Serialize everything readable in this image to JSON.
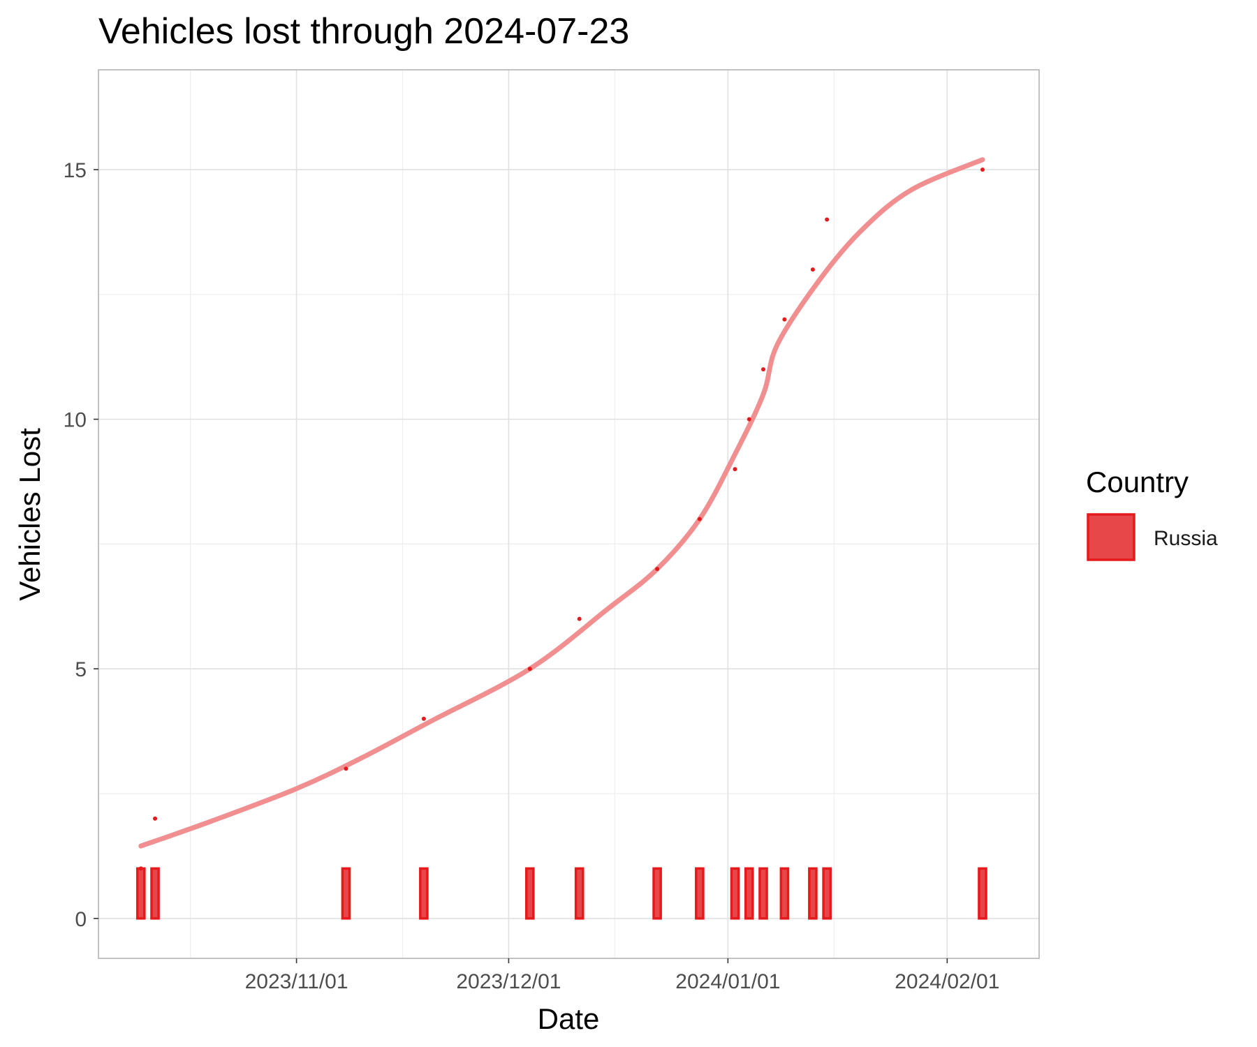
{
  "chart_data": {
    "type": "line",
    "title": "Vehicles lost through 2024-07-23",
    "xlabel": "Date",
    "ylabel": "Vehicles Lost",
    "xlim": [
      "2023-10-04",
      "2024-02-14"
    ],
    "ylim": [
      -0.8,
      17
    ],
    "x_ticks": [
      "2023-11-01",
      "2023-12-01",
      "2024-01-01",
      "2024-02-01"
    ],
    "x_tick_labels": [
      "2023/11/01",
      "2023/12/01",
      "2024/01/01",
      "2024/02/01"
    ],
    "y_ticks": [
      0,
      5,
      10,
      15
    ],
    "y_tick_labels": [
      "0",
      "5",
      "10",
      "15"
    ],
    "grid": true,
    "legend": {
      "title": "Country",
      "position": "right",
      "entries": [
        "Russia"
      ]
    },
    "colors": {
      "series": "#e41a1c",
      "fill": "#e8474a",
      "smooth": "#f08e90"
    },
    "series": [
      {
        "name": "Russia",
        "points": [
          {
            "date": "2023-10-10",
            "value": 1
          },
          {
            "date": "2023-10-12",
            "value": 2
          },
          {
            "date": "2023-11-08",
            "value": 3
          },
          {
            "date": "2023-11-19",
            "value": 4
          },
          {
            "date": "2023-12-04",
            "value": 5
          },
          {
            "date": "2023-12-11",
            "value": 6
          },
          {
            "date": "2023-12-22",
            "value": 7
          },
          {
            "date": "2023-12-28",
            "value": 8
          },
          {
            "date": "2024-01-02",
            "value": 9
          },
          {
            "date": "2024-01-04",
            "value": 10
          },
          {
            "date": "2024-01-06",
            "value": 11
          },
          {
            "date": "2024-01-09",
            "value": 12
          },
          {
            "date": "2024-01-13",
            "value": 13
          },
          {
            "date": "2024-01-15",
            "value": 14
          },
          {
            "date": "2024-02-06",
            "value": 15
          }
        ],
        "daily_losses": [
          {
            "date": "2023-10-10",
            "value": 1
          },
          {
            "date": "2023-10-12",
            "value": 1
          },
          {
            "date": "2023-11-08",
            "value": 1
          },
          {
            "date": "2023-11-19",
            "value": 1
          },
          {
            "date": "2023-12-04",
            "value": 1
          },
          {
            "date": "2023-12-11",
            "value": 1
          },
          {
            "date": "2023-12-22",
            "value": 1
          },
          {
            "date": "2023-12-28",
            "value": 1
          },
          {
            "date": "2024-01-02",
            "value": 1
          },
          {
            "date": "2024-01-04",
            "value": 1
          },
          {
            "date": "2024-01-06",
            "value": 1
          },
          {
            "date": "2024-01-09",
            "value": 1
          },
          {
            "date": "2024-01-13",
            "value": 1
          },
          {
            "date": "2024-01-15",
            "value": 1
          },
          {
            "date": "2024-02-06",
            "value": 1
          }
        ],
        "smooth": [
          {
            "date": "2023-10-10",
            "value": 1.45
          },
          {
            "date": "2023-10-20",
            "value": 1.95
          },
          {
            "date": "2023-11-01",
            "value": 2.6
          },
          {
            "date": "2023-11-10",
            "value": 3.2
          },
          {
            "date": "2023-11-20",
            "value": 3.95
          },
          {
            "date": "2023-12-04",
            "value": 5.0
          },
          {
            "date": "2023-12-15",
            "value": 6.2
          },
          {
            "date": "2023-12-22",
            "value": 7.0
          },
          {
            "date": "2023-12-28",
            "value": 8.0
          },
          {
            "date": "2024-01-02",
            "value": 9.3
          },
          {
            "date": "2024-01-06",
            "value": 10.5
          },
          {
            "date": "2024-01-08",
            "value": 11.5
          },
          {
            "date": "2024-01-14",
            "value": 12.8
          },
          {
            "date": "2024-01-20",
            "value": 13.8
          },
          {
            "date": "2024-01-27",
            "value": 14.6
          },
          {
            "date": "2024-02-06",
            "value": 15.2
          }
        ]
      }
    ]
  }
}
